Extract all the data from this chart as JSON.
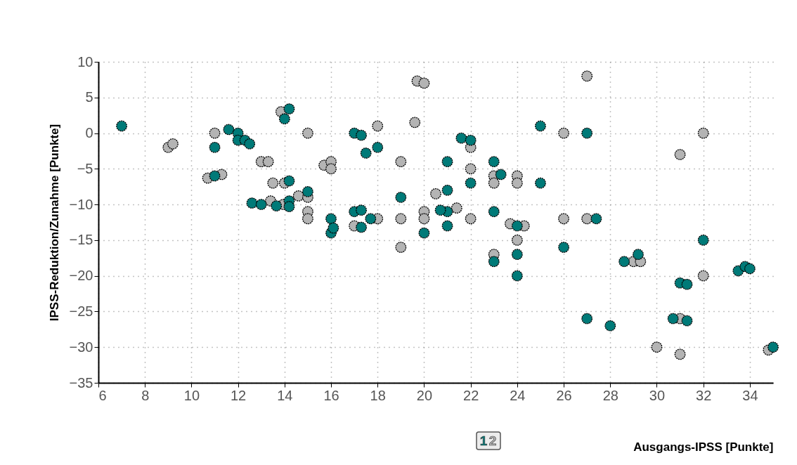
{
  "chart_data": {
    "type": "scatter",
    "xlabel": "Ausgangs-IPSS [Punkte]",
    "ylabel": "IPSS-Reduktion/Zunahme [Punkte]",
    "xlim": [
      6,
      35
    ],
    "xticks": [
      6,
      8,
      10,
      12,
      14,
      16,
      18,
      20,
      22,
      24,
      26,
      28,
      30,
      32,
      34
    ],
    "ylim": [
      -35,
      10
    ],
    "yticks": [
      -35,
      -30,
      -25,
      -20,
      -15,
      -10,
      -5,
      0,
      5,
      10
    ],
    "grid": true,
    "legend": "bottom",
    "marker": "circle",
    "series": [
      {
        "name": "2",
        "color": "#b4b4b4",
        "x": [
          9,
          9.2,
          11,
          10.7,
          11.3,
          13,
          13.3,
          13.5,
          14,
          13.4,
          13.95,
          14.6,
          15,
          15,
          15,
          13.85,
          15,
          15.7,
          16,
          16,
          17,
          18,
          18,
          19,
          19,
          19,
          19.6,
          19.7,
          20,
          20,
          20,
          20.5,
          21.4,
          22,
          22,
          22,
          23,
          23,
          23,
          23.7,
          24,
          24,
          24,
          24.3,
          26,
          26,
          27,
          27,
          29,
          29.3,
          30,
          31,
          31,
          31,
          32,
          32,
          34.8
        ],
        "values": [
          -2,
          -1.5,
          0,
          -6.3,
          -5.8,
          -4,
          -4,
          -7,
          -7,
          -9.5,
          -10,
          -8.8,
          -9,
          -11,
          -12,
          3,
          0,
          -4.5,
          -4,
          -5,
          -13,
          -12,
          1,
          -4,
          -12,
          -16,
          1.5,
          7.3,
          7,
          -11,
          -12,
          -8.5,
          -10.5,
          -2,
          -5,
          -12,
          -6,
          -7,
          -17,
          -12.7,
          -6,
          -7,
          -15,
          -13,
          0,
          -12,
          8,
          -12,
          -18,
          -18,
          -30,
          -3,
          -26,
          -31,
          0,
          -20,
          -30.4
        ]
      },
      {
        "name": "1",
        "color": "#007a78",
        "x": [
          7,
          11,
          11,
          11.6,
          12,
          12,
          12.3,
          12.5,
          12.6,
          13,
          13.65,
          14,
          14.2,
          14.2,
          14.2,
          14.2,
          15,
          16,
          16,
          16.1,
          17,
          17.3,
          17.5,
          18,
          17,
          17.3,
          17.7,
          17.3,
          19,
          20,
          21,
          21,
          21,
          21,
          20.7,
          21.6,
          22,
          22,
          23,
          23.3,
          23,
          23,
          24,
          24,
          24,
          25,
          25,
          26,
          27,
          27.4,
          27,
          28,
          28.6,
          29.2,
          32,
          31,
          31.3,
          30.7,
          31.3,
          33.5,
          33.8,
          34,
          35
        ],
        "values": [
          1,
          -2,
          -6,
          0.5,
          0,
          -1,
          -1,
          -1.5,
          -9.8,
          -10,
          -10.2,
          2,
          3.4,
          -6.7,
          -9.5,
          -10.3,
          -8.2,
          -12,
          -14,
          -13.3,
          0,
          -0.3,
          -2.8,
          -2,
          -11,
          -10.8,
          -12,
          -13.2,
          -9,
          -14,
          -4,
          -8,
          -11,
          -13,
          -10.8,
          -0.7,
          -1,
          -7,
          -4,
          -5.8,
          -11,
          -18,
          -13,
          -17,
          -20,
          1,
          -7,
          -16,
          0,
          -12,
          -26,
          -27,
          -18,
          -17,
          -15,
          -21,
          -21.2,
          -26,
          -26.3,
          -19.3,
          -18.7,
          -19,
          -30
        ]
      }
    ]
  }
}
